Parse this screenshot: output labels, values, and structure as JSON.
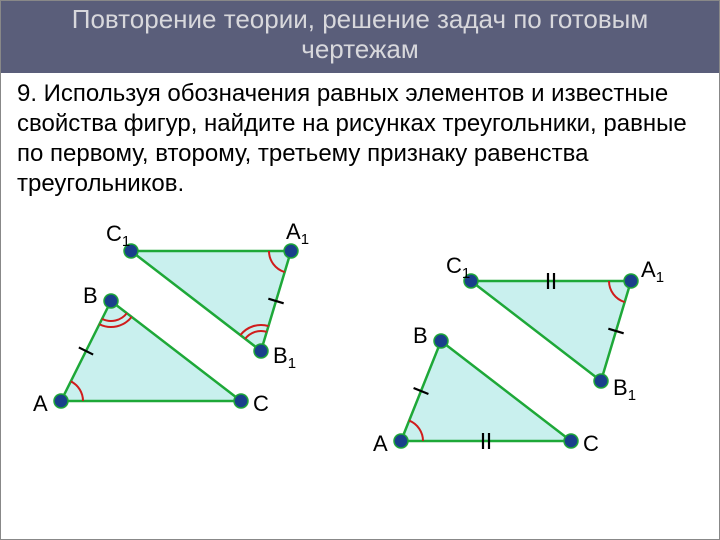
{
  "title": "Повторение теории, решение задач по готовым чертежам",
  "body": "9. Используя обозначения равных элементов и известные свойства фигур, найдите на рисунках треугольники, равные по первому, второму, третьему признаку равенства треугольников.",
  "colors": {
    "title_bg": "#5a5e7a",
    "title_text": "#d8d8dc",
    "body_text": "#000000",
    "tri_fill": "#c9f0ee",
    "tri_stroke": "#1ea838",
    "vertex_fill": "#1a3f8a",
    "angle_red": "#d01c1c"
  },
  "diagram_left": {
    "tri1": {
      "labels": {
        "A": "A",
        "B": "B",
        "C": "C"
      },
      "points": {
        "A": [
          60,
          180
        ],
        "B": [
          110,
          80
        ],
        "C": [
          240,
          180
        ]
      }
    },
    "tri2": {
      "labels": {
        "A1": "A",
        "B1": "B",
        "C1": "C"
      },
      "points": {
        "C1": [
          130,
          30
        ],
        "A1": [
          290,
          30
        ],
        "B1": [
          260,
          130
        ]
      }
    }
  },
  "diagram_right": {
    "tri1": {
      "labels": {
        "A": "A",
        "B": "B",
        "C": "C"
      },
      "points": {
        "A": [
          400,
          220
        ],
        "B": [
          440,
          120
        ],
        "C": [
          570,
          220
        ]
      }
    },
    "tri2": {
      "labels": {
        "A1": "A",
        "B1": "B",
        "C1": "C"
      },
      "points": {
        "C1": [
          470,
          60
        ],
        "A1": [
          630,
          60
        ],
        "B1": [
          600,
          160
        ]
      }
    }
  },
  "style": {
    "title_fontsize": 26,
    "body_fontsize": 24,
    "label_fontsize": 22,
    "tri_stroke_width": 2.5,
    "vertex_radius": 7,
    "angle_stroke_width": 2,
    "tick_stroke_width": 2.2
  }
}
